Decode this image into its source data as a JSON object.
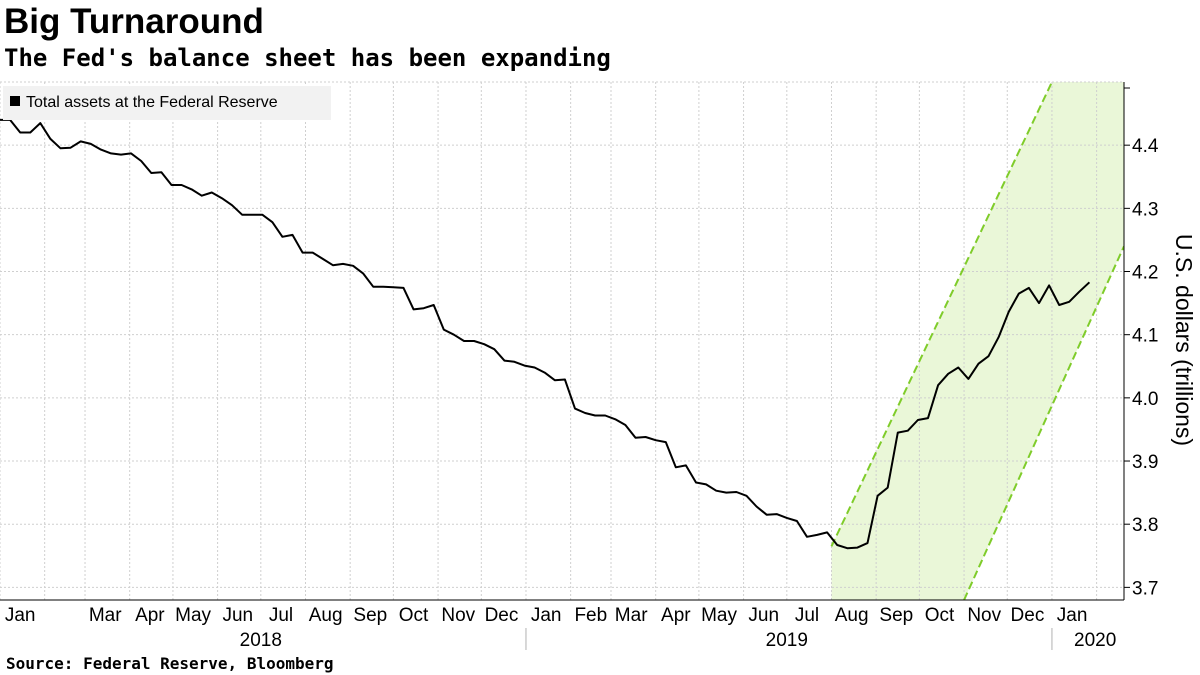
{
  "header": {
    "title": "Big Turnaround",
    "subtitle": "The Fed's balance sheet has been expanding"
  },
  "footer": {
    "source": "Source: Federal Reserve, Bloomberg"
  },
  "colors": {
    "line": "#000000",
    "band_fill": "#eaf7d8",
    "band_edge": "#7fcc2a",
    "grid": "#cfcfcf"
  },
  "chart_data": {
    "type": "line",
    "title": "Big Turnaround",
    "subtitle": "The Fed's balance sheet has been expanding",
    "ylabel": "U.S. dollars (trillions)",
    "xlabel": "",
    "ylim": [
      3.68,
      4.5
    ],
    "xlim": [
      "2018-01-01",
      "2020-02-20"
    ],
    "grid": true,
    "legend_position": "top-left",
    "yticks": [
      3.7,
      3.8,
      3.9,
      4.0,
      4.1,
      4.2,
      4.3,
      4.4
    ],
    "month_ticks": [
      {
        "label": "Jan",
        "date": "2018-01-15"
      },
      {
        "label": "Mar",
        "date": "2018-03-15"
      },
      {
        "label": "Apr",
        "date": "2018-04-15"
      },
      {
        "label": "May",
        "date": "2018-05-15"
      },
      {
        "label": "Jun",
        "date": "2018-06-15"
      },
      {
        "label": "Jul",
        "date": "2018-07-15"
      },
      {
        "label": "Aug",
        "date": "2018-08-15"
      },
      {
        "label": "Sep",
        "date": "2018-09-15"
      },
      {
        "label": "Oct",
        "date": "2018-10-15"
      },
      {
        "label": "Nov",
        "date": "2018-11-15"
      },
      {
        "label": "Dec",
        "date": "2018-12-15"
      },
      {
        "label": "Jan",
        "date": "2019-01-15"
      },
      {
        "label": "Feb",
        "date": "2019-02-15"
      },
      {
        "label": "Mar",
        "date": "2019-03-15"
      },
      {
        "label": "Apr",
        "date": "2019-04-15"
      },
      {
        "label": "May",
        "date": "2019-05-15"
      },
      {
        "label": "Jun",
        "date": "2019-06-15"
      },
      {
        "label": "Jul",
        "date": "2019-07-15"
      },
      {
        "label": "Aug",
        "date": "2019-08-15"
      },
      {
        "label": "Sep",
        "date": "2019-09-15"
      },
      {
        "label": "Oct",
        "date": "2019-10-15"
      },
      {
        "label": "Nov",
        "date": "2019-11-15"
      },
      {
        "label": "Dec",
        "date": "2019-12-15"
      },
      {
        "label": "Jan",
        "date": "2020-01-15"
      }
    ],
    "year_ticks": [
      {
        "label": "2018",
        "date": "2018-07-01"
      },
      {
        "label": "2019",
        "date": "2019-07-01"
      },
      {
        "label": "2020",
        "date": "2020-01-31"
      }
    ],
    "year_separators": [
      "2019-01-01",
      "2020-01-01"
    ],
    "series": [
      {
        "name": "Total assets at the Federal Reserve",
        "points": [
          [
            "2018-01-01",
            4.44
          ],
          [
            "2018-01-08",
            4.44
          ],
          [
            "2018-01-15",
            4.42
          ],
          [
            "2018-01-22",
            4.42
          ],
          [
            "2018-01-29",
            4.435
          ],
          [
            "2018-02-05",
            4.41
          ],
          [
            "2018-02-12",
            4.395
          ],
          [
            "2018-02-19",
            4.396
          ],
          [
            "2018-02-26",
            4.406
          ],
          [
            "2018-03-05",
            4.402
          ],
          [
            "2018-03-12",
            4.393
          ],
          [
            "2018-03-19",
            4.387
          ],
          [
            "2018-03-26",
            4.385
          ],
          [
            "2018-04-02",
            4.387
          ],
          [
            "2018-04-09",
            4.375
          ],
          [
            "2018-04-16",
            4.356
          ],
          [
            "2018-04-23",
            4.357
          ],
          [
            "2018-04-30",
            4.337
          ],
          [
            "2018-05-07",
            4.337
          ],
          [
            "2018-05-14",
            4.33
          ],
          [
            "2018-05-21",
            4.32
          ],
          [
            "2018-05-28",
            4.325
          ],
          [
            "2018-06-04",
            4.316
          ],
          [
            "2018-06-11",
            4.305
          ],
          [
            "2018-06-18",
            4.29
          ],
          [
            "2018-06-25",
            4.29
          ],
          [
            "2018-07-02",
            4.29
          ],
          [
            "2018-07-09",
            4.278
          ],
          [
            "2018-07-16",
            4.255
          ],
          [
            "2018-07-23",
            4.258
          ],
          [
            "2018-07-30",
            4.23
          ],
          [
            "2018-08-06",
            4.23
          ],
          [
            "2018-08-13",
            4.22
          ],
          [
            "2018-08-20",
            4.21
          ],
          [
            "2018-08-27",
            4.212
          ],
          [
            "2018-09-03",
            4.209
          ],
          [
            "2018-09-10",
            4.197
          ],
          [
            "2018-09-17",
            4.176
          ],
          [
            "2018-09-24",
            4.176
          ],
          [
            "2018-10-01",
            4.175
          ],
          [
            "2018-10-08",
            4.174
          ],
          [
            "2018-10-15",
            4.14
          ],
          [
            "2018-10-22",
            4.142
          ],
          [
            "2018-10-29",
            4.147
          ],
          [
            "2018-11-05",
            4.108
          ],
          [
            "2018-11-12",
            4.1
          ],
          [
            "2018-11-19",
            4.09
          ],
          [
            "2018-11-26",
            4.09
          ],
          [
            "2018-12-03",
            4.085
          ],
          [
            "2018-12-10",
            4.077
          ],
          [
            "2018-12-17",
            4.059
          ],
          [
            "2018-12-24",
            4.057
          ],
          [
            "2018-12-31",
            4.051
          ],
          [
            "2019-01-07",
            4.048
          ],
          [
            "2019-01-14",
            4.04
          ],
          [
            "2019-01-21",
            4.028
          ],
          [
            "2019-01-28",
            4.029
          ],
          [
            "2019-02-04",
            3.983
          ],
          [
            "2019-02-11",
            3.976
          ],
          [
            "2019-02-18",
            3.972
          ],
          [
            "2019-02-25",
            3.972
          ],
          [
            "2019-03-04",
            3.966
          ],
          [
            "2019-03-11",
            3.957
          ],
          [
            "2019-03-18",
            3.937
          ],
          [
            "2019-03-25",
            3.938
          ],
          [
            "2019-04-01",
            3.933
          ],
          [
            "2019-04-08",
            3.93
          ],
          [
            "2019-04-15",
            3.89
          ],
          [
            "2019-04-22",
            3.893
          ],
          [
            "2019-04-29",
            3.866
          ],
          [
            "2019-05-06",
            3.863
          ],
          [
            "2019-05-13",
            3.853
          ],
          [
            "2019-05-20",
            3.85
          ],
          [
            "2019-05-27",
            3.851
          ],
          [
            "2019-06-03",
            3.845
          ],
          [
            "2019-06-10",
            3.828
          ],
          [
            "2019-06-17",
            3.815
          ],
          [
            "2019-06-24",
            3.816
          ],
          [
            "2019-07-01",
            3.81
          ],
          [
            "2019-07-08",
            3.805
          ],
          [
            "2019-07-15",
            3.78
          ],
          [
            "2019-07-22",
            3.783
          ],
          [
            "2019-07-29",
            3.787
          ],
          [
            "2019-08-05",
            3.767
          ],
          [
            "2019-08-12",
            3.762
          ],
          [
            "2019-08-19",
            3.763
          ],
          [
            "2019-08-26",
            3.77
          ],
          [
            "2019-09-02",
            3.845
          ],
          [
            "2019-09-09",
            3.858
          ],
          [
            "2019-09-16",
            3.945
          ],
          [
            "2019-09-23",
            3.948
          ],
          [
            "2019-09-30",
            3.965
          ],
          [
            "2019-10-07",
            3.968
          ],
          [
            "2019-10-14",
            4.02
          ],
          [
            "2019-10-21",
            4.038
          ],
          [
            "2019-10-28",
            4.048
          ],
          [
            "2019-11-04",
            4.03
          ],
          [
            "2019-11-11",
            4.054
          ],
          [
            "2019-11-18",
            4.066
          ],
          [
            "2019-11-25",
            4.096
          ],
          [
            "2019-12-02",
            4.136
          ],
          [
            "2019-12-09",
            4.165
          ],
          [
            "2019-12-16",
            4.174
          ],
          [
            "2019-12-23",
            4.15
          ],
          [
            "2019-12-30",
            4.178
          ],
          [
            "2020-01-06",
            4.147
          ],
          [
            "2020-01-13",
            4.152
          ],
          [
            "2020-01-20",
            4.168
          ],
          [
            "2020-01-27",
            4.183
          ]
        ]
      }
    ],
    "trend_band": {
      "lower_edge": [
        [
          "2019-11-01",
          3.68
        ],
        [
          "2020-02-20",
          4.24
        ]
      ],
      "upper_edge": [
        [
          "2019-08-01",
          3.765
        ],
        [
          "2020-01-01",
          4.5
        ]
      ]
    }
  }
}
